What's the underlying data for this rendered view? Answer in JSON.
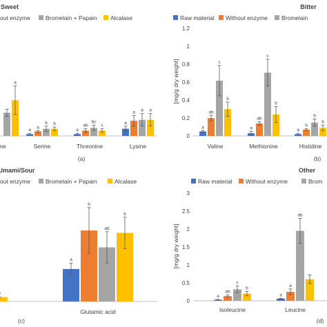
{
  "colors": {
    "raw_material": "#4472C4",
    "without_enzyme": "#ED7D31",
    "bromelain_papain": "#A5A5A5",
    "alcalase": "#FFC000",
    "axis": "#bfbfbf",
    "text": "#404040"
  },
  "chart_data": [
    {
      "type": "bar",
      "title": "Sweet",
      "panel_label": "(a)",
      "legend": [
        "out enzyme",
        "Bromelain + Papain",
        "Alcalase"
      ],
      "legend_colors": [
        "without_enzyme",
        "bromelain_papain",
        "alcalase"
      ],
      "categories": [
        "ne",
        "Serine",
        "Threonine",
        "Lysine"
      ],
      "series": [
        {
          "key": "raw_material",
          "values": [
            null,
            0.02,
            0.02,
            0.08
          ],
          "errors": [
            null,
            0.01,
            0.01,
            0.03
          ],
          "letters": [
            null,
            "a",
            "a",
            "a"
          ]
        },
        {
          "key": "without_enzyme",
          "values": [
            null,
            0.05,
            0.06,
            0.17
          ],
          "errors": [
            null,
            0.01,
            0.02,
            0.06
          ],
          "letters": [
            null,
            "a",
            "ab",
            "a"
          ]
        },
        {
          "key": "bromelain_papain",
          "values": [
            0.26,
            0.08,
            0.09,
            0.18
          ],
          "errors": [
            0.04,
            0.03,
            0.03,
            0.07
          ],
          "letters": [
            null,
            "b",
            "bc",
            "a"
          ]
        },
        {
          "key": "alcalase",
          "values": [
            0.4,
            0.08,
            0.06,
            0.18
          ],
          "errors": [
            0.16,
            0.02,
            0.02,
            0.07
          ],
          "letters": [
            "a",
            "b",
            "c",
            "a"
          ]
        }
      ],
      "ylim": [
        0,
        1.2
      ]
    },
    {
      "type": "bar",
      "title": "Bitter",
      "panel_label": "(b)",
      "ylabel": "[mg/g dry weight]",
      "legend": [
        "Raw material",
        "Without enzyme",
        "Bromelain"
      ],
      "legend_colors": [
        "raw_material",
        "without_enzyme",
        "bromelain_papain"
      ],
      "categories": [
        "Valine",
        "Methionine",
        "Histidine"
      ],
      "series": [
        {
          "key": "raw_material",
          "values": [
            0.05,
            0.03,
            0.02
          ],
          "errors": [
            0.01,
            0.02,
            0.01
          ],
          "letters": [
            "a",
            "a",
            "a"
          ]
        },
        {
          "key": "without_enzyme",
          "values": [
            0.2,
            0.14,
            0.07
          ],
          "errors": [
            0.03,
            0.02,
            0.01
          ],
          "letters": [
            "ab",
            "ab",
            "b"
          ]
        },
        {
          "key": "bromelain_papain",
          "values": [
            0.62,
            0.71,
            0.15
          ],
          "errors": [
            0.17,
            0.15,
            0.04
          ],
          "letters": [
            "c",
            "c",
            "b"
          ]
        },
        {
          "key": "alcalase",
          "values": [
            0.3,
            0.24,
            0.09
          ],
          "errors": [
            0.08,
            0.09,
            0.03
          ],
          "letters": [
            "b",
            "b",
            "b"
          ]
        }
      ],
      "ylim": [
        0,
        1.2
      ],
      "yticks": [
        "0",
        "0.2",
        "0.4",
        "0.6",
        "0.8",
        "1",
        "1.2"
      ]
    },
    {
      "type": "bar",
      "title": "Umami/Sour",
      "panel_label": "(c)",
      "legend": [
        "out enzyme",
        "Bromelain + Papain",
        "Alcalase"
      ],
      "legend_colors": [
        "without_enzyme",
        "bromelain_papain",
        "alcalase"
      ],
      "categories": [
        "",
        "Glutamic acid"
      ],
      "series": [
        {
          "key": "raw_material",
          "values": [
            null,
            1.35
          ],
          "errors": [
            null,
            0.25
          ],
          "letters": [
            null,
            "a"
          ]
        },
        {
          "key": "without_enzyme",
          "values": [
            null,
            2.95
          ],
          "errors": [
            null,
            0.95
          ],
          "letters": [
            null,
            "b"
          ]
        },
        {
          "key": "bromelain_papain",
          "values": [
            null,
            2.25
          ],
          "errors": [
            null,
            0.65
          ],
          "letters": [
            null,
            "ab"
          ]
        },
        {
          "key": "alcalase",
          "values": [
            0.18,
            2.85
          ],
          "errors": [
            0.04,
            0.65
          ],
          "letters": [
            "b",
            "b"
          ]
        }
      ],
      "ylim": [
        0,
        4.5
      ]
    },
    {
      "type": "bar",
      "title": "Other",
      "panel_label": "(d)",
      "ylabel": "[mg/g dry weight]",
      "legend": [
        "Raw material",
        "Without enzyme",
        "Brom"
      ],
      "legend_colors": [
        "raw_material",
        "without_enzyme",
        "bromelain_papain"
      ],
      "categories": [
        "Isoleucine",
        "Leucine"
      ],
      "series": [
        {
          "key": "raw_material",
          "values": [
            0.03,
            0.06
          ],
          "errors": [
            0.01,
            0.01
          ],
          "letters": [
            "a",
            "a"
          ]
        },
        {
          "key": "without_enzyme",
          "values": [
            0.13,
            0.25
          ],
          "errors": [
            0.03,
            0.08
          ],
          "letters": [
            "ab",
            "a"
          ]
        },
        {
          "key": "bromelain_papain",
          "values": [
            0.32,
            1.95
          ],
          "errors": [
            0.09,
            0.35
          ],
          "letters": [
            "c",
            "ab"
          ]
        },
        {
          "key": "alcalase",
          "values": [
            0.2,
            0.6
          ],
          "errors": [
            0.06,
            0.12
          ],
          "letters": [
            "b",
            null
          ]
        }
      ],
      "ylim": [
        0,
        3
      ],
      "yticks": [
        "0",
        "0.5",
        "1",
        "1.5",
        "2",
        "2.5",
        "3"
      ]
    }
  ]
}
